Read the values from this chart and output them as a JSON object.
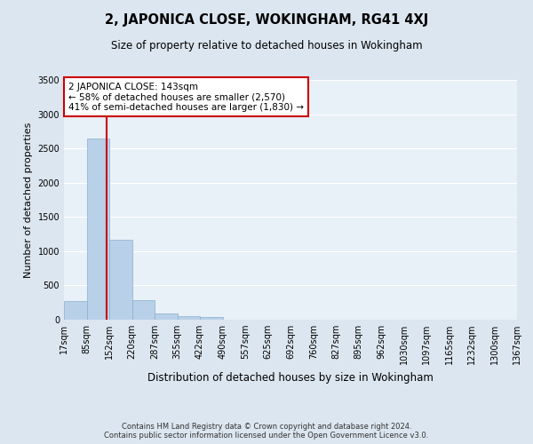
{
  "title": "2, JAPONICA CLOSE, WOKINGHAM, RG41 4XJ",
  "subtitle": "Size of property relative to detached houses in Wokingham",
  "xlabel": "Distribution of detached houses by size in Wokingham",
  "ylabel": "Number of detached properties",
  "bin_labels": [
    "17sqm",
    "85sqm",
    "152sqm",
    "220sqm",
    "287sqm",
    "355sqm",
    "422sqm",
    "490sqm",
    "557sqm",
    "625sqm",
    "692sqm",
    "760sqm",
    "827sqm",
    "895sqm",
    "962sqm",
    "1030sqm",
    "1097sqm",
    "1165sqm",
    "1232sqm",
    "1300sqm",
    "1367sqm"
  ],
  "bin_edges": [
    17,
    85,
    152,
    220,
    287,
    355,
    422,
    490,
    557,
    625,
    692,
    760,
    827,
    895,
    962,
    1030,
    1097,
    1165,
    1232,
    1300,
    1367
  ],
  "bar_heights": [
    270,
    2640,
    1170,
    290,
    95,
    55,
    45,
    5,
    0,
    0,
    0,
    0,
    0,
    0,
    0,
    0,
    0,
    0,
    0,
    0
  ],
  "bar_color": "#b8d0e8",
  "bar_edge_color": "#8ab0cc",
  "property_size": 143,
  "vline_color": "#cc0000",
  "ylim": [
    0,
    3500
  ],
  "yticks": [
    0,
    500,
    1000,
    1500,
    2000,
    2500,
    3000,
    3500
  ],
  "annotation_text": "2 JAPONICA CLOSE: 143sqm\n← 58% of detached houses are smaller (2,570)\n41% of semi-detached houses are larger (1,830) →",
  "annotation_box_color": "#ffffff",
  "annotation_box_edge": "#cc0000",
  "footer_line1": "Contains HM Land Registry data © Crown copyright and database right 2024.",
  "footer_line2": "Contains public sector information licensed under the Open Government Licence v3.0.",
  "bg_color": "#dce6f0",
  "plot_bg_color": "#e8f0f8",
  "grid_color": "#ffffff",
  "title_fontsize": 10.5,
  "subtitle_fontsize": 8.5,
  "ylabel_fontsize": 8,
  "xlabel_fontsize": 8.5,
  "tick_fontsize": 7,
  "annot_fontsize": 7.5,
  "footer_fontsize": 6
}
